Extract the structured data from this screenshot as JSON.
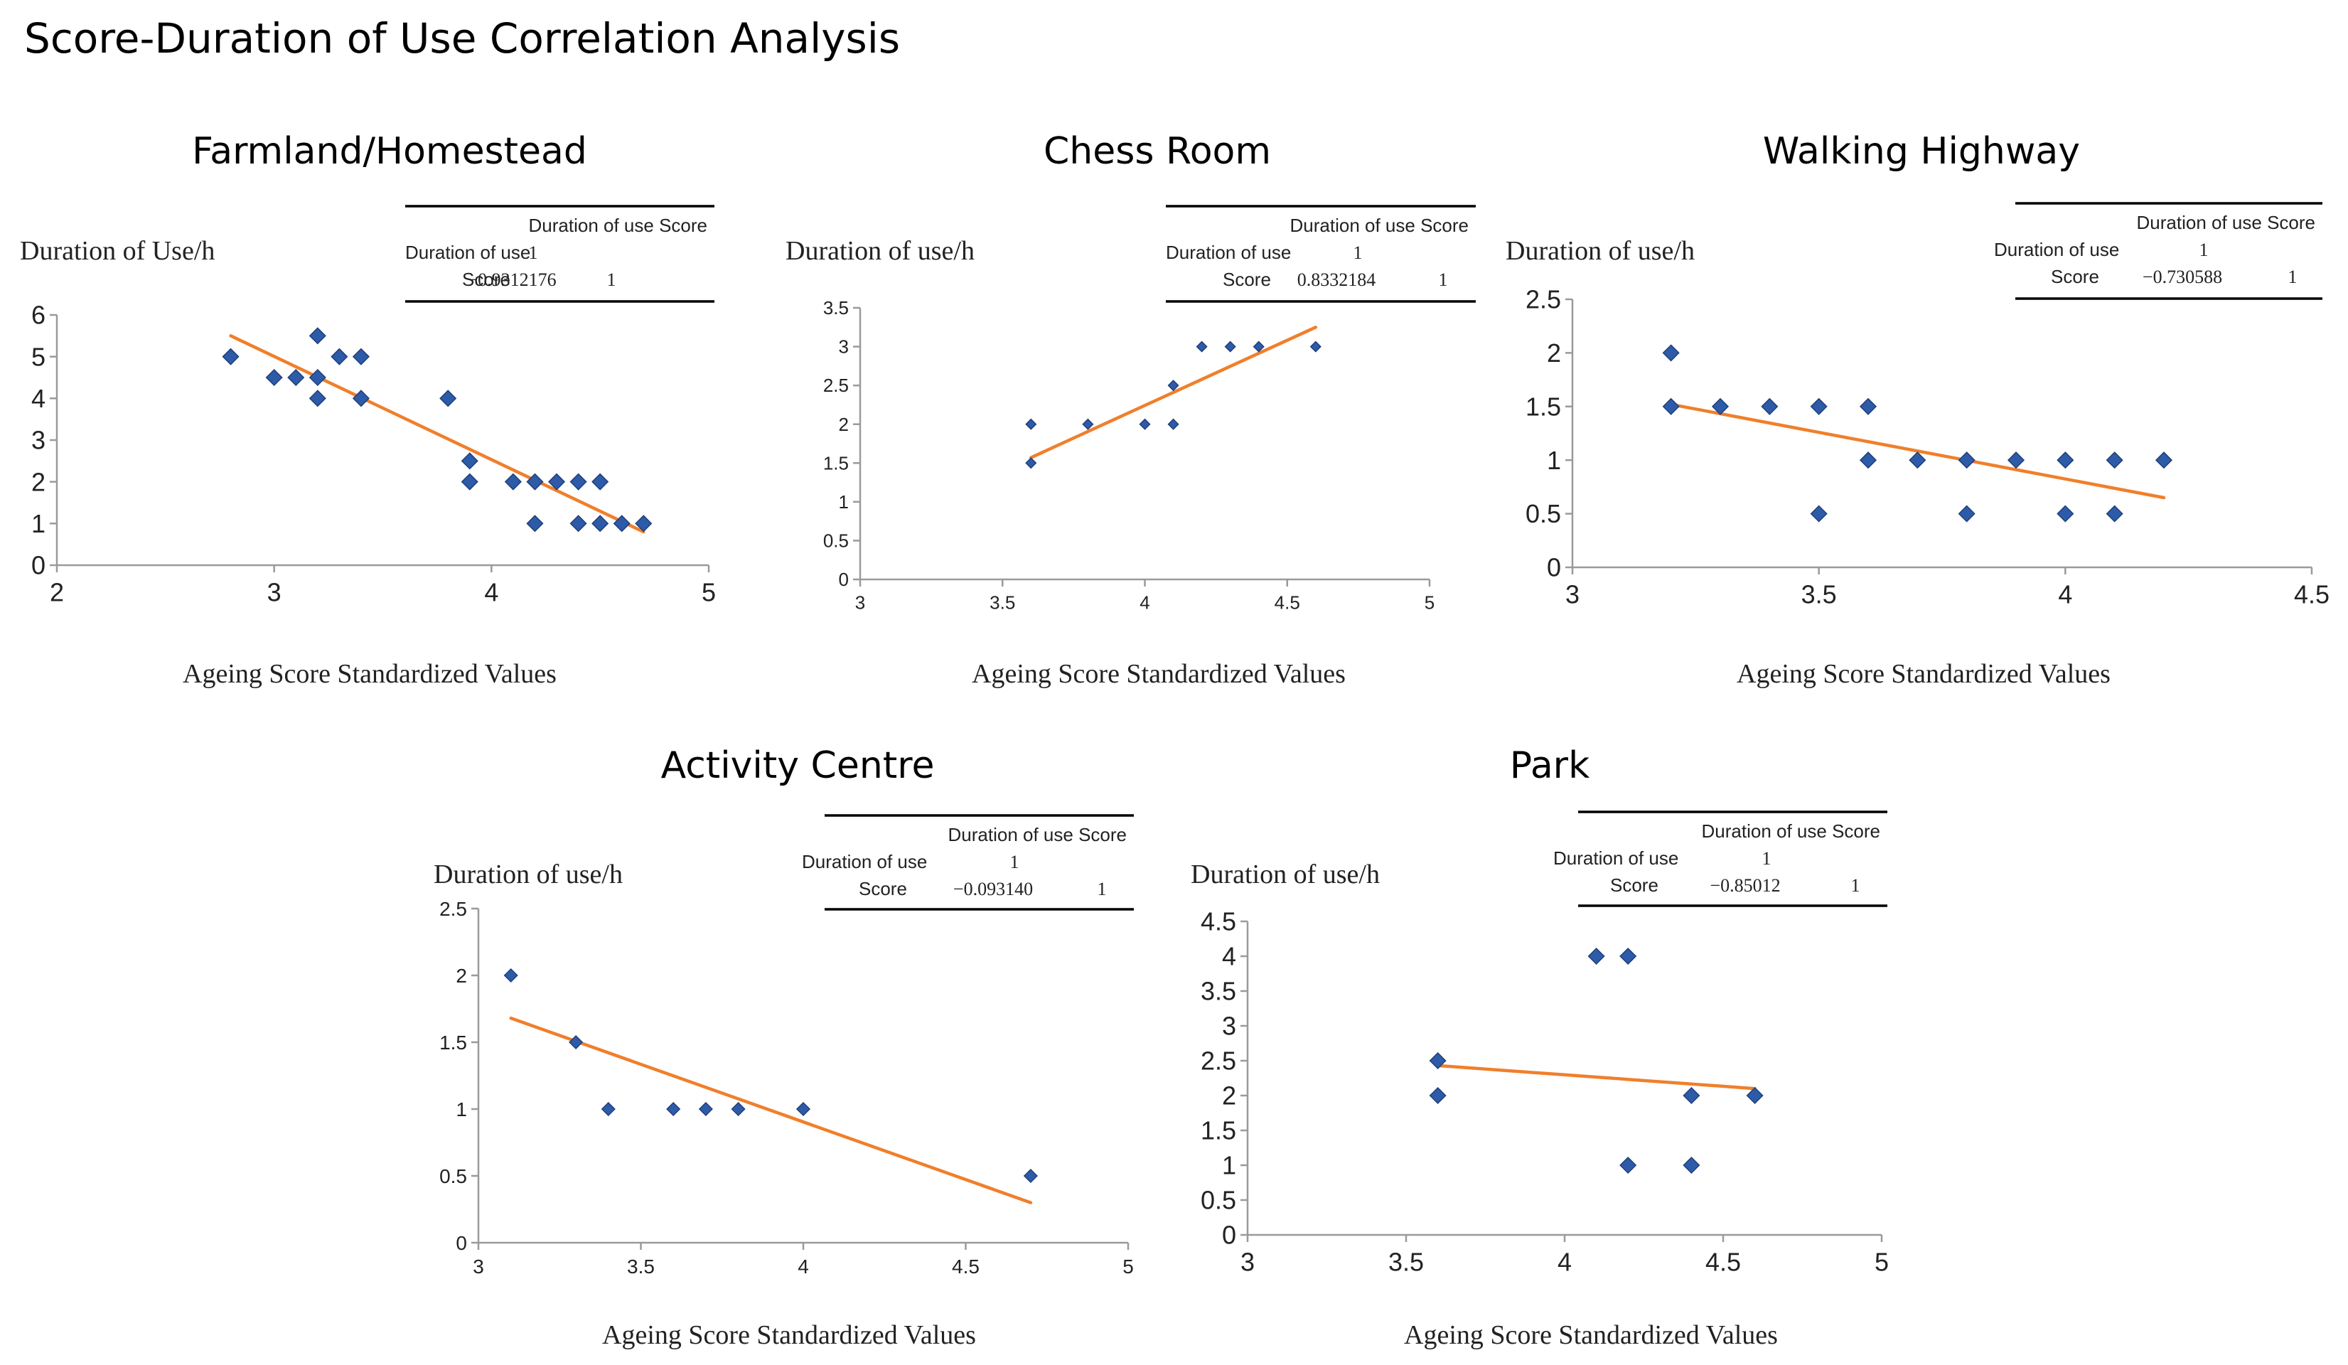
{
  "page": {
    "title": "Score-Duration of Use Correlation Analysis"
  },
  "colors": {
    "marker": "#2e5ba8",
    "marker_edge": "#1f3f7a",
    "trendline": "#f07f2b",
    "axis": "#9a9a9a",
    "text": "#222222"
  },
  "chart_data": [
    {
      "type": "scatter",
      "title": "Farmland/Homestead",
      "ylabel": "Duration of Use/h",
      "xlabel": "Ageing Score Standardized Values",
      "xlim": [
        2,
        5
      ],
      "ylim": [
        0,
        6
      ],
      "xticks": [
        "2",
        "3",
        "4",
        "5"
      ],
      "yticks": [
        "0",
        "1",
        "2",
        "3",
        "4",
        "5",
        "6"
      ],
      "xtick_values": [
        2,
        3,
        4,
        5
      ],
      "ytick_values": [
        0,
        1,
        2,
        3,
        4,
        5,
        6
      ],
      "points": [
        [
          2.8,
          5
        ],
        [
          3.0,
          4.5
        ],
        [
          3.1,
          4.5
        ],
        [
          3.2,
          4.5
        ],
        [
          3.2,
          4
        ],
        [
          3.2,
          5.5
        ],
        [
          3.3,
          5
        ],
        [
          3.4,
          5
        ],
        [
          3.4,
          4
        ],
        [
          3.8,
          4
        ],
        [
          3.9,
          2.5
        ],
        [
          3.9,
          2
        ],
        [
          4.1,
          2
        ],
        [
          4.2,
          2
        ],
        [
          4.2,
          1
        ],
        [
          4.3,
          2
        ],
        [
          4.4,
          2
        ],
        [
          4.4,
          1
        ],
        [
          4.5,
          2
        ],
        [
          4.5,
          1
        ],
        [
          4.6,
          1
        ],
        [
          4.7,
          1
        ]
      ],
      "trendline": [
        [
          2.8,
          5.5
        ],
        [
          4.7,
          0.8
        ]
      ],
      "corr_table": {
        "col_header": "Duration of use Score",
        "rows": [
          {
            "label": "Duration of use",
            "v1": "1",
            "v2": ""
          },
          {
            "label": "Score",
            "v1": "−0.9312176",
            "v2": "1"
          }
        ]
      }
    },
    {
      "type": "scatter",
      "title": "Chess Room",
      "ylabel": "Duration of use/h",
      "xlabel": "Ageing Score Standardized Values",
      "xlim": [
        3,
        5
      ],
      "ylim": [
        0,
        3.5
      ],
      "xticks": [
        "3",
        "3.5",
        "4",
        "4.5",
        "5"
      ],
      "yticks": [
        "0",
        "0.5",
        "1",
        "1.5",
        "2",
        "2.5",
        "3",
        "3.5"
      ],
      "xtick_values": [
        3,
        3.5,
        4,
        4.5,
        5
      ],
      "ytick_values": [
        0,
        0.5,
        1,
        1.5,
        2,
        2.5,
        3,
        3.5
      ],
      "points": [
        [
          3.6,
          2
        ],
        [
          3.6,
          1.5
        ],
        [
          3.8,
          2
        ],
        [
          4.0,
          2
        ],
        [
          4.1,
          2
        ],
        [
          4.1,
          2.5
        ],
        [
          4.2,
          3
        ],
        [
          4.3,
          3
        ],
        [
          4.4,
          3
        ],
        [
          4.6,
          3
        ]
      ],
      "trendline": [
        [
          3.6,
          1.57
        ],
        [
          4.6,
          3.25
        ]
      ],
      "corr_table": {
        "col_header": "Duration of use Score",
        "rows": [
          {
            "label": "Duration of use",
            "v1": "1",
            "v2": ""
          },
          {
            "label": "Score",
            "v1": "0.8332184",
            "v2": "1"
          }
        ]
      }
    },
    {
      "type": "scatter",
      "title": "Walking Highway",
      "ylabel": "Duration of use/h",
      "xlabel": "Ageing Score Standardized Values",
      "xlim": [
        3,
        4.5
      ],
      "ylim": [
        0,
        2.5
      ],
      "xticks": [
        "3",
        "3.5",
        "4",
        "4.5"
      ],
      "yticks": [
        "0",
        "0.5",
        "1",
        "1.5",
        "2",
        "2.5"
      ],
      "xtick_values": [
        3,
        3.5,
        4,
        4.5
      ],
      "ytick_values": [
        0,
        0.5,
        1,
        1.5,
        2,
        2.5
      ],
      "points": [
        [
          3.2,
          2
        ],
        [
          3.2,
          1.5
        ],
        [
          3.3,
          1.5
        ],
        [
          3.4,
          1.5
        ],
        [
          3.5,
          1.5
        ],
        [
          3.5,
          0.5
        ],
        [
          3.6,
          1.5
        ],
        [
          3.6,
          1
        ],
        [
          3.7,
          1
        ],
        [
          3.8,
          1
        ],
        [
          3.8,
          0.5
        ],
        [
          3.9,
          1
        ],
        [
          4.0,
          1
        ],
        [
          4.0,
          0.5
        ],
        [
          4.1,
          1
        ],
        [
          4.1,
          0.5
        ],
        [
          4.2,
          1
        ]
      ],
      "trendline": [
        [
          3.2,
          1.52
        ],
        [
          4.2,
          0.65
        ]
      ],
      "corr_table": {
        "col_header": "Duration of use Score",
        "rows": [
          {
            "label": "Duration of use",
            "v1": "1",
            "v2": ""
          },
          {
            "label": "Score",
            "v1": "−0.730588",
            "v2": "1"
          }
        ]
      }
    },
    {
      "type": "scatter",
      "title": "Activity Centre",
      "ylabel": "Duration of use/h",
      "xlabel": "Ageing Score Standardized Values",
      "xlim": [
        3,
        5
      ],
      "ylim": [
        0,
        2.5
      ],
      "xticks": [
        "3",
        "3.5",
        "4",
        "4.5",
        "5"
      ],
      "yticks": [
        "0",
        "0.5",
        "1",
        "1.5",
        "2",
        "2.5"
      ],
      "xtick_values": [
        3,
        3.5,
        4,
        4.5,
        5
      ],
      "ytick_values": [
        0,
        0.5,
        1,
        1.5,
        2,
        2.5
      ],
      "points": [
        [
          3.1,
          2
        ],
        [
          3.3,
          1.5
        ],
        [
          3.4,
          1
        ],
        [
          3.6,
          1
        ],
        [
          3.7,
          1
        ],
        [
          3.8,
          1
        ],
        [
          4.0,
          1
        ],
        [
          4.7,
          0.5
        ]
      ],
      "trendline": [
        [
          3.1,
          1.68
        ],
        [
          4.7,
          0.3
        ]
      ],
      "corr_table": {
        "col_header": "Duration of use Score",
        "rows": [
          {
            "label": "Duration of use",
            "v1": "1",
            "v2": ""
          },
          {
            "label": "Score",
            "v1": "−0.093140",
            "v2": "1"
          }
        ]
      }
    },
    {
      "type": "scatter",
      "title": "Park",
      "ylabel": "Duration of use/h",
      "xlabel": "Ageing Score Standardized Values",
      "xlim": [
        3,
        5
      ],
      "ylim": [
        0,
        4.5
      ],
      "xticks": [
        "3",
        "3.5",
        "4",
        "4.5",
        "5"
      ],
      "yticks": [
        "0",
        "0.5",
        "1",
        "1.5",
        "2",
        "2.5",
        "3",
        "3.5",
        "4",
        "4.5"
      ],
      "xtick_values": [
        3,
        3.5,
        4,
        4.5,
        5
      ],
      "ytick_values": [
        0,
        0.5,
        1,
        1.5,
        2,
        2.5,
        3,
        3.5,
        4,
        4.5
      ],
      "points": [
        [
          3.6,
          2.5
        ],
        [
          3.6,
          2
        ],
        [
          4.1,
          4
        ],
        [
          4.2,
          4
        ],
        [
          4.2,
          1
        ],
        [
          4.4,
          2
        ],
        [
          4.4,
          1
        ],
        [
          4.6,
          2
        ]
      ],
      "trendline": [
        [
          3.6,
          2.43
        ],
        [
          4.6,
          2.1
        ]
      ],
      "corr_table": {
        "col_header": "Duration of use Score",
        "rows": [
          {
            "label": "Duration of use",
            "v1": "1",
            "v2": ""
          },
          {
            "label": "Score",
            "v1": "−0.85012",
            "v2": "1"
          }
        ]
      }
    }
  ]
}
